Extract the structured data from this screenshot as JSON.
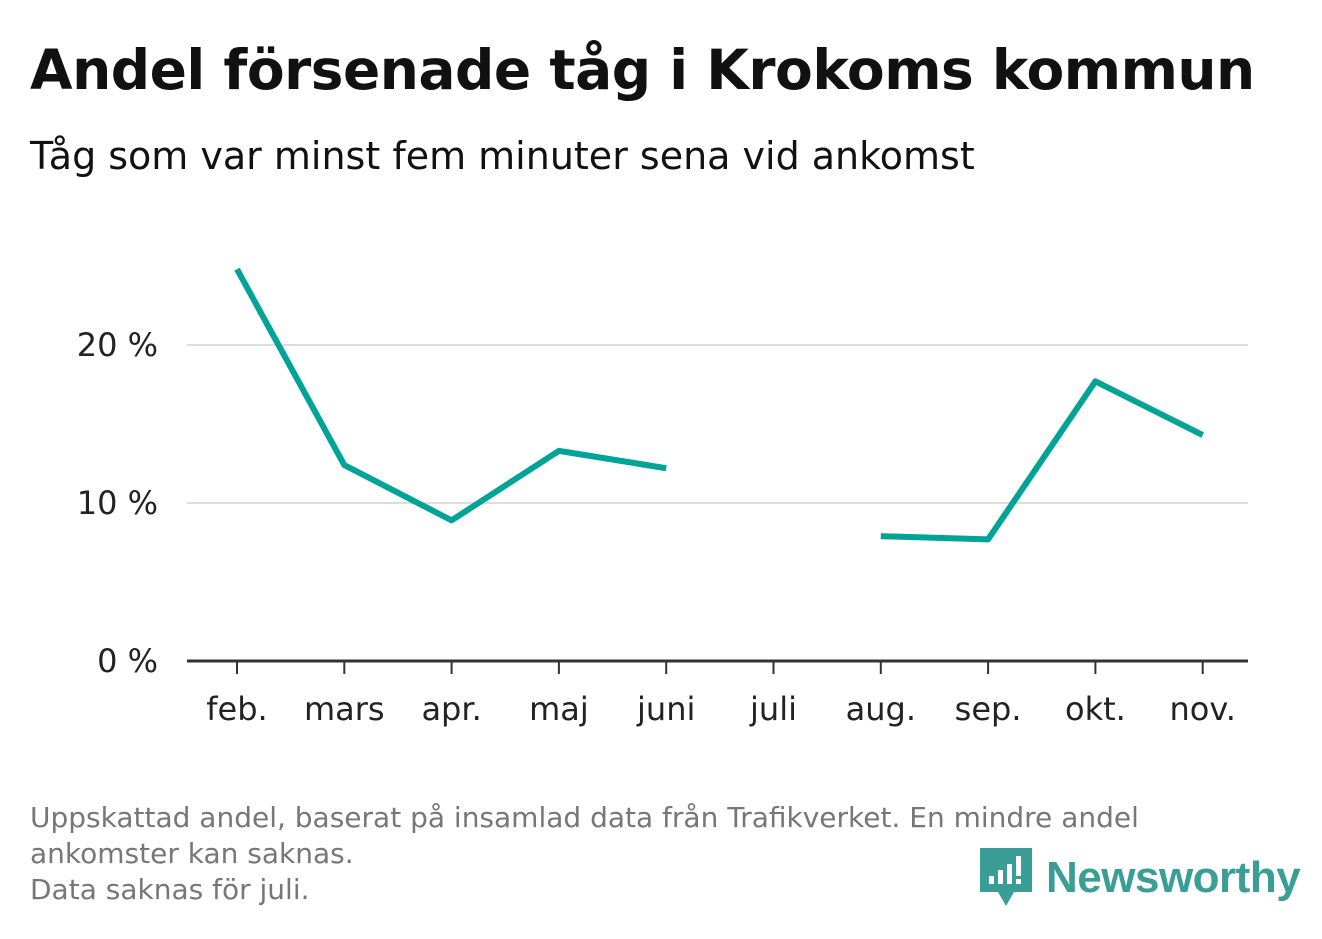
{
  "title": "Andel försenade tåg i Krokoms kommun",
  "subtitle": "Tåg som var minst fem minuter sena vid ankomst",
  "footnote": {
    "line1": "Uppskattad andel, baserat på insamlad data från Trafikverket. En mindre andel",
    "line2": "ankomster kan saknas.",
    "line3": "Data saknas för juli."
  },
  "brand": {
    "name": "Newsworthy",
    "icon": "bar-chart-icon",
    "color": "#3a9e96"
  },
  "chart_data": {
    "type": "line",
    "title": "Andel försenade tåg i Krokoms kommun",
    "subtitle": "Tåg som var minst fem minuter sena vid ankomst",
    "xlabel": "",
    "ylabel": "",
    "categories": [
      "feb.",
      "mars",
      "apr.",
      "maj",
      "juni",
      "juli",
      "aug.",
      "sep.",
      "okt.",
      "nov."
    ],
    "series": [
      {
        "values": [
          24.8,
          12.4,
          8.9,
          13.3,
          12.2,
          null,
          7.9,
          7.7,
          17.7,
          14.3
        ],
        "color": "#00a398"
      }
    ],
    "ylim": [
      0,
      25
    ],
    "yticks": [
      0,
      10,
      20
    ],
    "ytick_labels": [
      "0 %",
      "10 %",
      "20 %"
    ],
    "grid": true,
    "legend": "none"
  }
}
